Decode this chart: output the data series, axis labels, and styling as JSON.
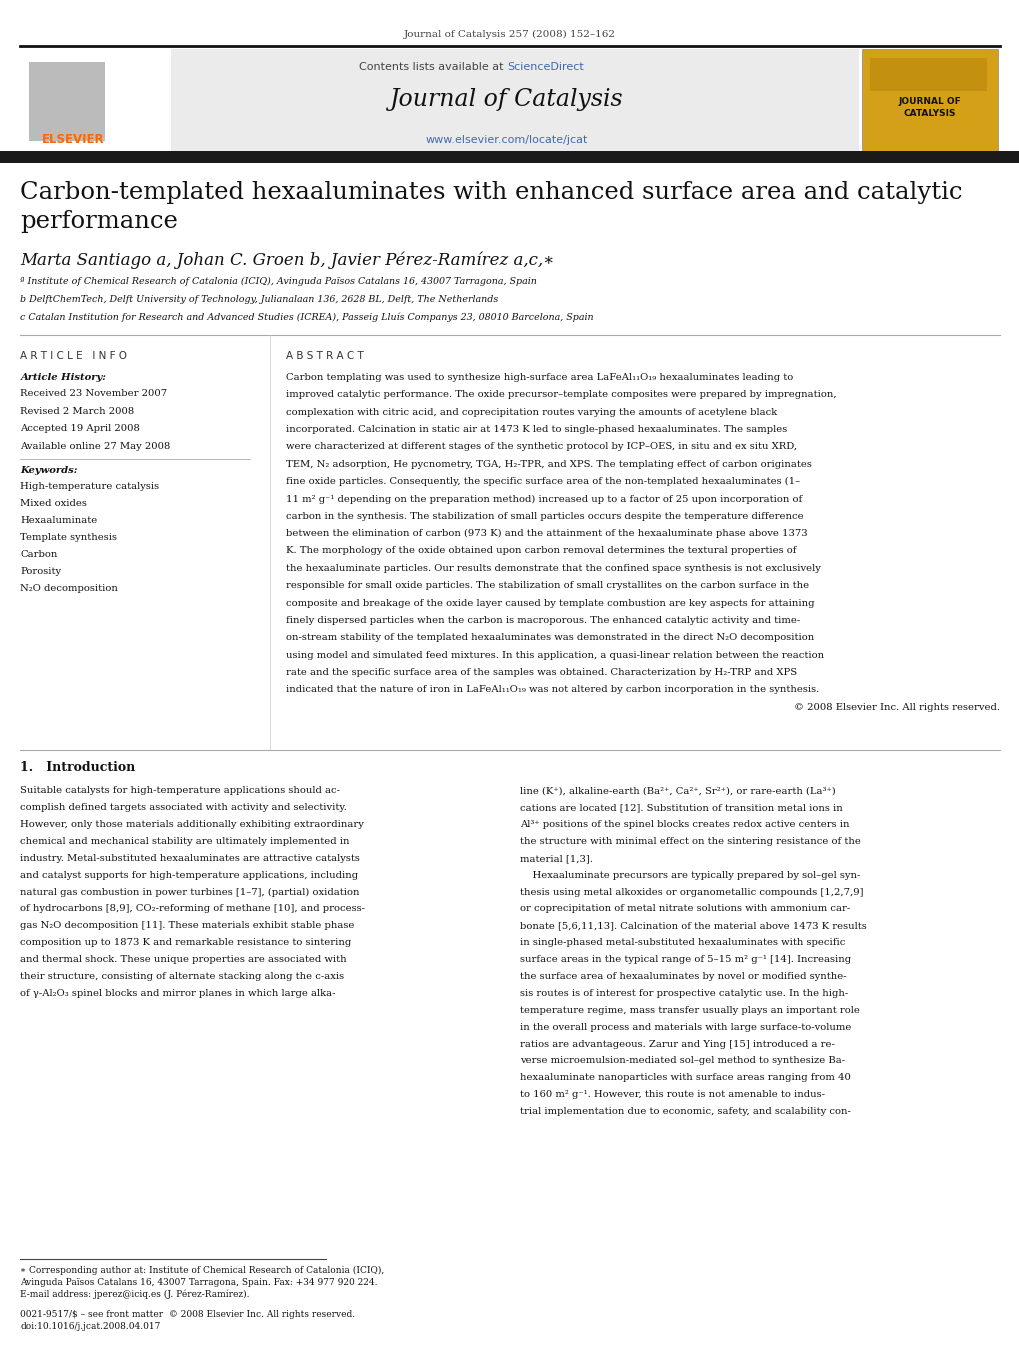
{
  "bg_color": "#ffffff",
  "page_top_text": "Journal of Catalysis 257 (2008) 152–162",
  "header_bg": "#f0f0f0",
  "header_contents_text": "Contents lists available at ",
  "header_sciencedirect": "ScienceDirect",
  "header_journal_title": "Journal of Catalysis",
  "header_url": "www.elsevier.com/locate/jcat",
  "elsevier_color": "#ff6600",
  "sciencedirect_color": "#4169aa",
  "url_color": "#4169aa",
  "journal_badge_bg": "#d4a017",
  "journal_badge_text": "JOURNAL OF\nCATALYSIS",
  "dark_bar_color": "#1a1a1a",
  "paper_title": "Carbon-templated hexaaluminates with enhanced surface area and catalytic\nperformance",
  "authors": "Marta Santiago a, Johan C. Groen b, Javier Pérez-Ramírez a,c,∗",
  "affil_a": "ª Institute of Chemical Research of Catalonia (ICIQ), Avinguda Països Catalans 16, 43007 Tarragona, Spain",
  "affil_b": "b DelftChemTech, Delft University of Technology, Julianalaan 136, 2628 BL, Delft, The Netherlands",
  "affil_c": "c Catalan Institution for Research and Advanced Studies (ICREA), Passeig Lluís Companys 23, 08010 Barcelona, Spain",
  "article_info_title": "A R T I C L E   I N F O",
  "article_history_title": "Article History:",
  "dates": [
    "Received 23 November 2007",
    "Revised 2 March 2008",
    "Accepted 19 April 2008",
    "Available online 27 May 2008"
  ],
  "keywords_title": "Keywords:",
  "keywords": [
    "High-temperature catalysis",
    "Mixed oxides",
    "Hexaaluminate",
    "Template synthesis",
    "Carbon",
    "Porosity",
    "N₂O decomposition"
  ],
  "abstract_title": "A B S T R A C T",
  "abstract_text": "Carbon templating was used to synthesize high-surface area LaFeAl₁₁O₁₉ hexaaluminates leading to improved catalytic performance. The oxide precursor–template composites were prepared by impregnation, complexation with citric acid, and coprecipitation routes varying the amounts of acetylene black incorporated. Calcination in static air at 1473 K led to single-phased hexaaluminates. The samples were characterized at different stages of the synthetic protocol by ICP–OES, in situ and ex situ XRD, TEM, N₂ adsorption, He pycnometry, TGA, H₂-TPR, and XPS. The templating effect of carbon originates fine oxide particles. Consequently, the specific surface area of the non-templated hexaaluminates (1–11 m² g⁻¹ depending on the preparation method) increased up to a factor of 25 upon incorporation of carbon in the synthesis. The stabilization of small particles occurs despite the temperature difference between the elimination of carbon (973 K) and the attainment of the hexaaluminate phase above 1373 K. The morphology of the oxide obtained upon carbon removal determines the textural properties of the hexaaluminate particles. Our results demonstrate that the confined space synthesis is not exclusively responsible for small oxide particles. The stabilization of small crystallites on the carbon surface in the composite and breakage of the oxide layer caused by template combustion are key aspects for attaining finely dispersed particles when the carbon is macroporous. The enhanced catalytic activity and time-on-stream stability of the templated hexaaluminates was demonstrated in the direct N₂O decomposition using model and simulated feed mixtures. In this application, a quasi-linear relation between the reaction rate and the specific surface area of the samples was obtained. Characterization by H₂-TRP and XPS indicated that the nature of iron in LaFeAl₁₁O₁₉ was not altered by carbon incorporation in the synthesis.\n© 2008 Elsevier Inc. All rights reserved.",
  "intro_title": "1.   Introduction",
  "intro_col1": "Suitable catalysts for high-temperature applications should ac-\ncomplish defined targets associated with activity and selectivity.\nHowever, only those materials additionally exhibiting extraordinary\nchemical and mechanical stability are ultimately implemented in\nindustry. Metal-substituted hexaaluminates are attractive catalysts\nand catalyst supports for high-temperature applications, including\nnatural gas combustion in power turbines [1–7], (partial) oxidation\nof hydrocarbons [8,9], CO₂-reforming of methane [10], and process-\ngas N₂O decomposition [11]. These materials exhibit stable phase\ncomposition up to 1873 K and remarkable resistance to sintering\nand thermal shock. These unique properties are associated with\ntheir structure, consisting of alternate stacking along the c-axis\nof γ-Al₂O₃ spinel blocks and mirror planes in which large alka-",
  "intro_col2": "line (K⁺), alkaline-earth (Ba²⁺, Ca²⁺, Sr²⁺), or rare-earth (La³⁺)\ncations are located [12]. Substitution of transition metal ions in\nAl³⁺ positions of the spinel blocks creates redox active centers in\nthe structure with minimal effect on the sintering resistance of the\nmaterial [1,3].\n    Hexaaluminate precursors are typically prepared by sol–gel syn-\nthesis using metal alkoxides or organometallic compounds [1,2,7,9]\nor coprecipitation of metal nitrate solutions with ammonium car-\nbonate [5,6,11,13]. Calcination of the material above 1473 K results\nin single-phased metal-substituted hexaaluminates with specific\nsurface areas in the typical range of 5–15 m² g⁻¹ [14]. Increasing\nthe surface area of hexaaluminates by novel or modified synthe-\nsis routes is of interest for prospective catalytic use. In the high-\ntemperature regime, mass transfer usually plays an important role\nin the overall process and materials with large surface-to-volume\nratios are advantageous. Zarur and Ying [15] introduced a re-\nverse microemulsion-mediated sol–gel method to synthesize Ba-\nhexaaluminate nanoparticles with surface areas ranging from 40\nto 160 m² g⁻¹. However, this route is not amenable to indus-\ntrial implementation due to economic, safety, and scalability con-",
  "footnote_star": "∗ Corresponding author at: Institute of Chemical Research of Catalonia (ICIQ),\nAvinguda Països Catalans 16, 43007 Tarragona, Spain. Fax: +34 977 920 224.\nE-mail address: jperez@iciq.es (J. Pérez-Ramírez).",
  "bottom_text": "0021-9517/$ – see front matter  © 2008 Elsevier Inc. All rights reserved.\ndoi:10.1016/j.jcat.2008.04.017"
}
